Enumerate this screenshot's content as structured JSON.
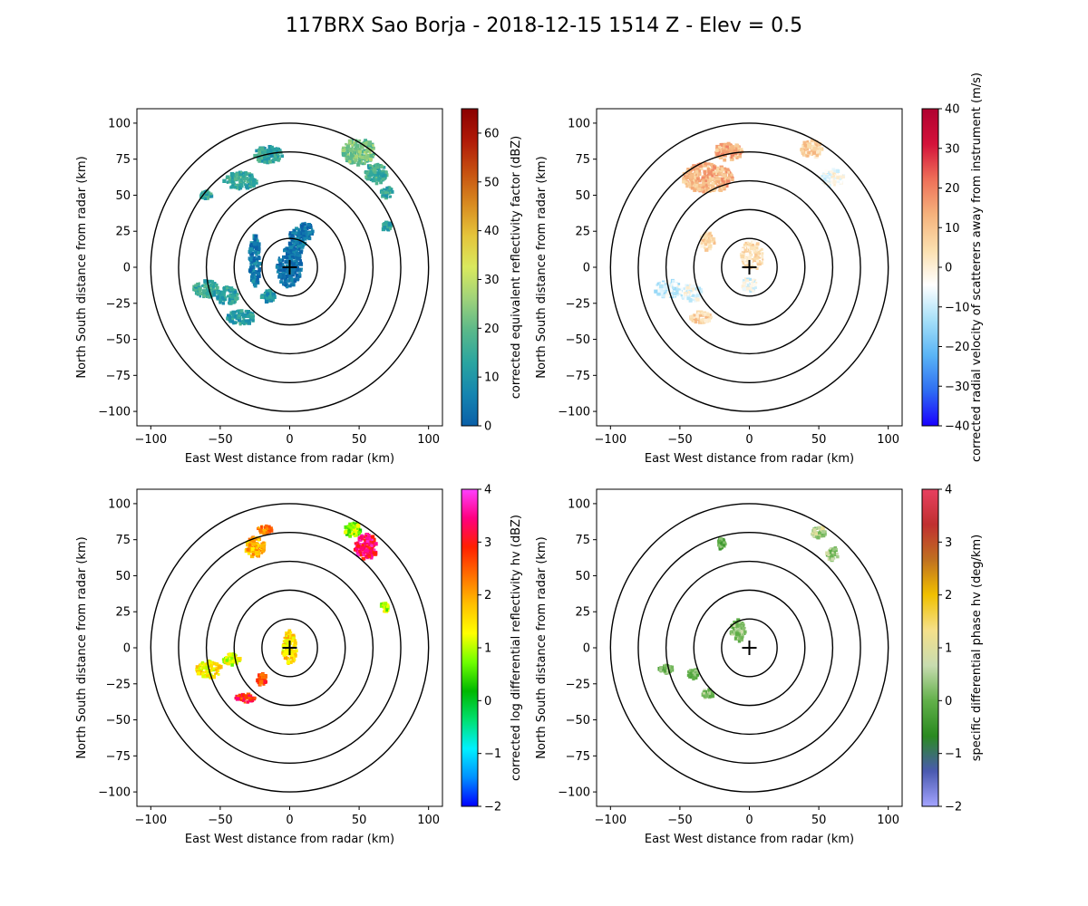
{
  "figure": {
    "title": "117BRX Sao Borja - 2018-12-15 1514 Z -  Elev = 0.5"
  },
  "chart_data": [
    {
      "type": "heatmap",
      "field": "reflectivity",
      "xlabel": "East West distance from radar (km)",
      "ylabel": "North South distance from radar (km)",
      "xlim": [
        -110,
        110
      ],
      "ylim": [
        -110,
        110
      ],
      "xticks": [
        -100,
        -50,
        0,
        50,
        100
      ],
      "yticks": [
        -100,
        -75,
        -50,
        -25,
        0,
        25,
        50,
        75,
        100
      ],
      "range_rings_km": [
        20,
        40,
        60,
        80,
        100
      ],
      "radar_location": [
        0,
        0
      ],
      "colorbar": {
        "label": "corrected equivalent reflectivity factor (dBZ)",
        "vmin": 0,
        "vmax": 65,
        "ticks": [
          0,
          10,
          20,
          30,
          40,
          50,
          60
        ],
        "colors": [
          "#0a5fa8",
          "#1585b0",
          "#2aa5a0",
          "#5ab88a",
          "#9fd27a",
          "#d9e95e",
          "#e5c43a",
          "#d88a20",
          "#c65010",
          "#b01a08",
          "#8a0000"
        ]
      },
      "echoes": [
        {
          "x": 0,
          "y": 0,
          "rx": 9,
          "ry": 14,
          "value": 3
        },
        {
          "x": 5,
          "y": 18,
          "rx": 6,
          "ry": 9,
          "value": 4
        },
        {
          "x": 12,
          "y": 25,
          "rx": 5,
          "ry": 6,
          "value": 3
        },
        {
          "x": -25,
          "y": 5,
          "rx": 4,
          "ry": 18,
          "value": 5
        },
        {
          "x": -60,
          "y": -15,
          "rx": 9,
          "ry": 6,
          "value": 14
        },
        {
          "x": -45,
          "y": -20,
          "rx": 8,
          "ry": 6,
          "value": 13
        },
        {
          "x": -35,
          "y": -35,
          "rx": 10,
          "ry": 5,
          "value": 12
        },
        {
          "x": -15,
          "y": -20,
          "rx": 5,
          "ry": 4,
          "value": 10
        },
        {
          "x": -15,
          "y": 78,
          "rx": 10,
          "ry": 6,
          "value": 14
        },
        {
          "x": -35,
          "y": 60,
          "rx": 12,
          "ry": 6,
          "value": 15
        },
        {
          "x": -60,
          "y": 50,
          "rx": 4,
          "ry": 3,
          "value": 14
        },
        {
          "x": 50,
          "y": 80,
          "rx": 12,
          "ry": 9,
          "value": 22
        },
        {
          "x": 62,
          "y": 65,
          "rx": 8,
          "ry": 7,
          "value": 16
        },
        {
          "x": 70,
          "y": 52,
          "rx": 4,
          "ry": 4,
          "value": 14
        },
        {
          "x": 70,
          "y": 28,
          "rx": 3,
          "ry": 3,
          "value": 13
        }
      ]
    },
    {
      "type": "heatmap",
      "field": "velocity",
      "xlabel": "East West distance from radar (km)",
      "ylabel": "North South distance from radar (km)",
      "xlim": [
        -110,
        110
      ],
      "ylim": [
        -110,
        110
      ],
      "xticks": [
        -100,
        -50,
        0,
        50,
        100
      ],
      "yticks": [
        -100,
        -75,
        -50,
        -25,
        0,
        25,
        50,
        75,
        100
      ],
      "range_rings_km": [
        20,
        40,
        60,
        80,
        100
      ],
      "radar_location": [
        0,
        0
      ],
      "colorbar": {
        "label": "corrected radial velocity of scatterers away from instrument (m/s)",
        "vmin": -40,
        "vmax": 40,
        "ticks": [
          -40,
          -30,
          -20,
          -10,
          0,
          10,
          20,
          30,
          40
        ],
        "colors": [
          "#1a00ff",
          "#2f6ef2",
          "#5ab4f5",
          "#a6e0f8",
          "#ffffff",
          "#fbdfae",
          "#f5b27c",
          "#ee6f58",
          "#d4123a",
          "#b00030"
        ]
      },
      "echoes": [
        {
          "x": 2,
          "y": 8,
          "rx": 8,
          "ry": 10,
          "value": 3
        },
        {
          "x": 0,
          "y": -12,
          "rx": 6,
          "ry": 5,
          "value": -6
        },
        {
          "x": -30,
          "y": 62,
          "rx": 18,
          "ry": 10,
          "value": 12
        },
        {
          "x": -15,
          "y": 80,
          "rx": 10,
          "ry": 6,
          "value": 13
        },
        {
          "x": -58,
          "y": -15,
          "rx": 10,
          "ry": 6,
          "value": -8
        },
        {
          "x": -42,
          "y": -18,
          "rx": 8,
          "ry": 6,
          "value": -6
        },
        {
          "x": -35,
          "y": -35,
          "rx": 8,
          "ry": 4,
          "value": 6
        },
        {
          "x": 45,
          "y": 82,
          "rx": 8,
          "ry": 6,
          "value": 6
        },
        {
          "x": 60,
          "y": 62,
          "rx": 8,
          "ry": 6,
          "value": -4
        },
        {
          "x": -30,
          "y": 18,
          "rx": 5,
          "ry": 6,
          "value": 4
        }
      ]
    },
    {
      "type": "heatmap",
      "field": "differential_reflectivity",
      "xlabel": "East West distance from radar (km)",
      "ylabel": "North South distance from radar (km)",
      "xlim": [
        -110,
        110
      ],
      "ylim": [
        -110,
        110
      ],
      "xticks": [
        -100,
        -50,
        0,
        50,
        100
      ],
      "yticks": [
        -100,
        -75,
        -50,
        -25,
        0,
        25,
        50,
        75,
        100
      ],
      "range_rings_km": [
        20,
        40,
        60,
        80,
        100
      ],
      "radar_location": [
        0,
        0
      ],
      "colorbar": {
        "label": "corrected log differential reflectivity hv (dBZ)",
        "vmin": -2,
        "vmax": 4,
        "ticks": [
          -2,
          -1,
          0,
          1,
          2,
          3,
          4
        ],
        "colors": [
          "#0000ff",
          "#0090ff",
          "#00f0ff",
          "#00e070",
          "#00b800",
          "#70ff00",
          "#ffff00",
          "#ffc000",
          "#ff7000",
          "#ff2000",
          "#ff0080",
          "#ff40ff"
        ]
      },
      "echoes": [
        {
          "x": 0,
          "y": 0,
          "rx": 5,
          "ry": 12,
          "value": 1.6
        },
        {
          "x": -58,
          "y": -15,
          "rx": 9,
          "ry": 6,
          "value": 1.4
        },
        {
          "x": -42,
          "y": -8,
          "rx": 6,
          "ry": 4,
          "value": 1.2
        },
        {
          "x": -32,
          "y": -35,
          "rx": 7,
          "ry": 3,
          "value": 2.9
        },
        {
          "x": -20,
          "y": -22,
          "rx": 4,
          "ry": 4,
          "value": 2.6
        },
        {
          "x": -25,
          "y": 70,
          "rx": 7,
          "ry": 7,
          "value": 1.9
        },
        {
          "x": -18,
          "y": 82,
          "rx": 5,
          "ry": 3,
          "value": 2.2
        },
        {
          "x": 55,
          "y": 70,
          "rx": 8,
          "ry": 9,
          "value": 3.3
        },
        {
          "x": 45,
          "y": 82,
          "rx": 6,
          "ry": 5,
          "value": 0.8
        },
        {
          "x": 68,
          "y": 28,
          "rx": 3,
          "ry": 3,
          "value": 1.0
        }
      ]
    },
    {
      "type": "heatmap",
      "field": "specific_differential_phase",
      "xlabel": "East West distance from radar (km)",
      "ylabel": "North South distance from radar (km)",
      "xlim": [
        -110,
        110
      ],
      "ylim": [
        -110,
        110
      ],
      "xticks": [
        -100,
        -50,
        0,
        50,
        100
      ],
      "yticks": [
        -100,
        -75,
        -50,
        -25,
        0,
        25,
        50,
        75,
        100
      ],
      "range_rings_km": [
        20,
        40,
        60,
        80,
        100
      ],
      "radar_location": [
        0,
        0
      ],
      "colorbar": {
        "label": "specific differential phase hv (deg/km)",
        "vmin": -2,
        "vmax": 4,
        "ticks": [
          -2,
          -1,
          0,
          1,
          2,
          3,
          4
        ],
        "colors": [
          "#a4a4ff",
          "#4a5ab0",
          "#2a8a20",
          "#62b04a",
          "#c8dcb0",
          "#f5e08a",
          "#f0c000",
          "#c07020",
          "#c03030",
          "#e84060"
        ]
      },
      "echoes": [
        {
          "x": -8,
          "y": 12,
          "rx": 5,
          "ry": 8,
          "value": 0.4
        },
        {
          "x": -60,
          "y": -15,
          "rx": 5,
          "ry": 3,
          "value": 0.2
        },
        {
          "x": -40,
          "y": -18,
          "rx": 4,
          "ry": 4,
          "value": 0.1
        },
        {
          "x": -30,
          "y": -32,
          "rx": 4,
          "ry": 3,
          "value": 0.3
        },
        {
          "x": -20,
          "y": 72,
          "rx": 3,
          "ry": 4,
          "value": -0.1
        },
        {
          "x": 50,
          "y": 80,
          "rx": 5,
          "ry": 4,
          "value": 0.6
        },
        {
          "x": 60,
          "y": 65,
          "rx": 4,
          "ry": 5,
          "value": 0.3
        }
      ]
    }
  ]
}
